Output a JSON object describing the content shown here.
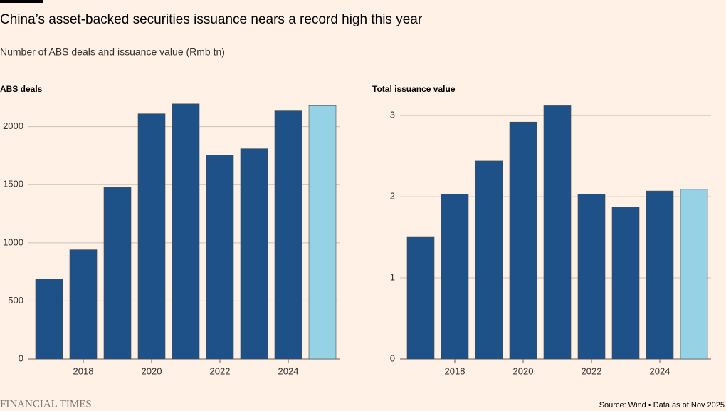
{
  "title": "China’s asset-backed securities issuance nears a record high this year",
  "subtitle": "Number of ABS deals and issuance value (Rmb tn)",
  "source": "Source: Wind • Data as of Nov 2025",
  "logo": "FINANCIAL TIMES",
  "chart_data": [
    {
      "type": "bar",
      "title": "ABS deals",
      "categories": [
        null,
        "2018",
        null,
        "2020",
        null,
        "2022",
        null,
        "2024",
        null
      ],
      "values": [
        690,
        940,
        1475,
        2110,
        2195,
        1755,
        1810,
        2135,
        2180
      ],
      "colors": [
        "#1f5189",
        "#1f5189",
        "#1f5189",
        "#1f5189",
        "#1f5189",
        "#1f5189",
        "#1f5189",
        "#1f5189",
        "#96d2e6"
      ],
      "ylim": [
        0,
        2200
      ],
      "yticks": [
        0,
        500,
        1000,
        1500,
        2000
      ],
      "grid": true
    },
    {
      "type": "bar",
      "title": "Total issuance value",
      "categories": [
        null,
        "2018",
        null,
        "2020",
        null,
        "2022",
        null,
        "2024",
        null
      ],
      "values": [
        1.5,
        2.03,
        2.44,
        2.92,
        3.12,
        2.03,
        1.87,
        2.07,
        2.09
      ],
      "colors": [
        "#1f5189",
        "#1f5189",
        "#1f5189",
        "#1f5189",
        "#1f5189",
        "#1f5189",
        "#1f5189",
        "#1f5189",
        "#96d2e6"
      ],
      "ylim": [
        0,
        3.15
      ],
      "yticks": [
        0,
        1,
        2,
        3
      ],
      "grid": true
    }
  ]
}
